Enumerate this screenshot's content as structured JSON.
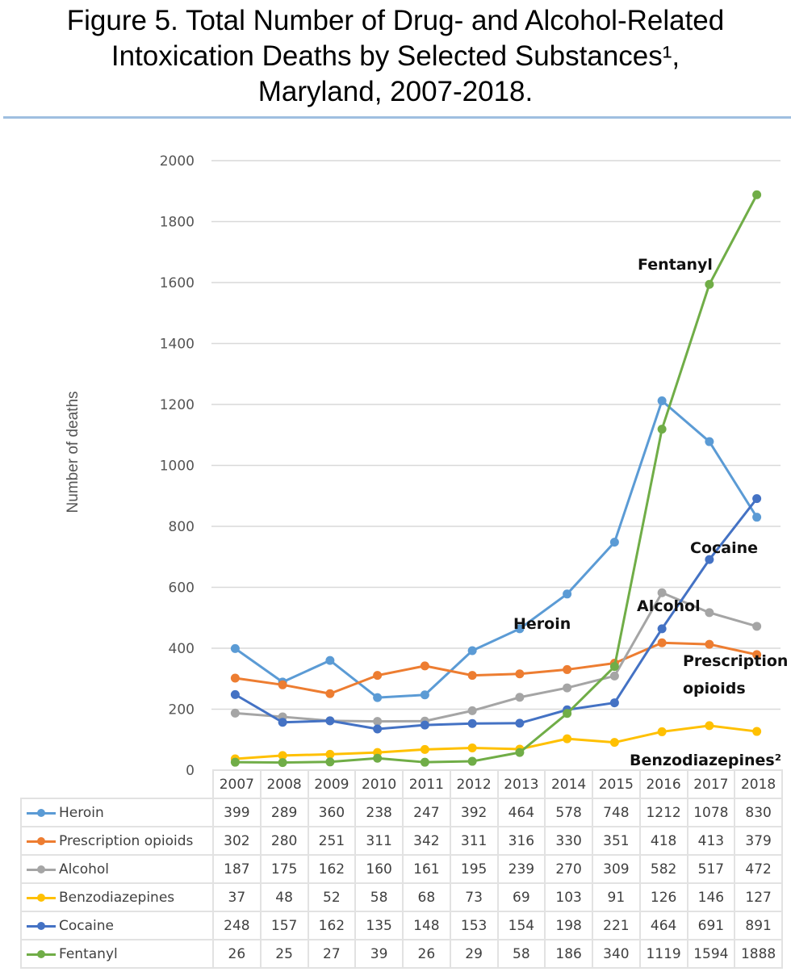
{
  "figure": {
    "title_lines": [
      "Figure 5.  Total Number of Drug- and Alcohol-Related",
      "Intoxication Deaths by Selected Substances¹,",
      "Maryland, 2007-2018."
    ],
    "rule_color": "#9fbfe0"
  },
  "chart_data": {
    "type": "line",
    "title": "Figure 5.  Total Number of Drug- and Alcohol-Related Intoxication Deaths by Selected Substances¹, Maryland, 2007-2018.",
    "xlabel": "",
    "ylabel": "Number of deaths",
    "ylim": [
      0,
      2000
    ],
    "yticks": [
      0,
      200,
      400,
      600,
      800,
      1000,
      1200,
      1400,
      1600,
      1800,
      2000
    ],
    "grid": true,
    "legend_placement": "data-table-below",
    "categories": [
      "2007",
      "2008",
      "2009",
      "2010",
      "2011",
      "2012",
      "2013",
      "2014",
      "2015",
      "2016",
      "2017",
      "2018"
    ],
    "series": [
      {
        "name": "Heroin",
        "color": "#5b9bd5",
        "values": [
          399,
          289,
          360,
          238,
          247,
          392,
          464,
          578,
          748,
          1212,
          1078,
          830
        ]
      },
      {
        "name": "Prescription opioids",
        "color": "#ed7d31",
        "values": [
          302,
          280,
          251,
          311,
          342,
          311,
          316,
          330,
          351,
          418,
          413,
          379
        ]
      },
      {
        "name": "Alcohol",
        "color": "#a5a5a5",
        "values": [
          187,
          175,
          162,
          160,
          161,
          195,
          239,
          270,
          309,
          582,
          517,
          472
        ]
      },
      {
        "name": "Benzodiazepines",
        "color": "#ffc000",
        "values": [
          37,
          48,
          52,
          58,
          68,
          73,
          69,
          103,
          91,
          126,
          146,
          127
        ]
      },
      {
        "name": "Cocaine",
        "color": "#4472c4",
        "values": [
          248,
          157,
          162,
          135,
          148,
          153,
          154,
          198,
          221,
          464,
          691,
          891
        ]
      },
      {
        "name": "Fentanyl",
        "color": "#70ad47",
        "values": [
          26,
          25,
          27,
          39,
          26,
          29,
          58,
          186,
          340,
          1119,
          1594,
          1888
        ]
      }
    ],
    "annotations": [
      {
        "text": "Fentanyl",
        "series": "Fentanyl"
      },
      {
        "text": "Heroin",
        "series": "Heroin"
      },
      {
        "text": "Cocaine",
        "series": "Cocaine"
      },
      {
        "text": "Alcohol",
        "series": "Alcohol"
      },
      {
        "text": "Prescription",
        "series": "Prescription opioids"
      },
      {
        "text": "opioids",
        "series": "Prescription opioids"
      },
      {
        "text": "Benzodiazepines²",
        "series": "Benzodiazepines"
      }
    ]
  }
}
